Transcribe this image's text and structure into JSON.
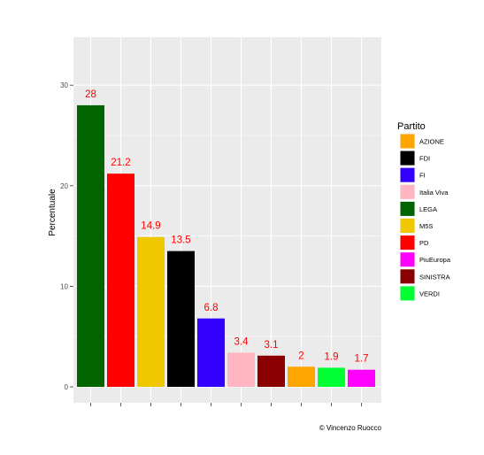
{
  "chart_data": {
    "type": "bar",
    "categories": [
      "LEGA",
      "PD",
      "M5S",
      "FDI",
      "FI",
      "Italia Viva",
      "SINISTRA",
      "AZIONE",
      "VERDI",
      "PiuEuropa"
    ],
    "values": [
      28,
      21.2,
      14.9,
      13.5,
      6.8,
      3.4,
      3.1,
      2,
      1.9,
      1.7
    ],
    "value_labels": [
      "28",
      "21.2",
      "14.9",
      "13.5",
      "6.8",
      "3.4",
      "3.1",
      "2",
      "1.9",
      "1.7"
    ],
    "ylabel": "Percentuale",
    "xlabel": "",
    "ylim": [
      0,
      33.6
    ],
    "yticks": [
      0,
      10,
      20,
      30
    ],
    "grid": true,
    "legend": {
      "title": "Partito",
      "placement": "right",
      "entries": [
        {
          "label": "AZIONE",
          "color": "#ffa500"
        },
        {
          "label": "FDI",
          "color": "#000000"
        },
        {
          "label": "FI",
          "color": "#3300ff"
        },
        {
          "label": "Italia Viva",
          "color": "#ffb6c1"
        },
        {
          "label": "LEGA",
          "color": "#006400"
        },
        {
          "label": "M5S",
          "color": "#f0c800"
        },
        {
          "label": "PD",
          "color": "#ff0000"
        },
        {
          "label": "PiuEuropa",
          "color": "#ff00ff"
        },
        {
          "label": "SINISTRA",
          "color": "#8b0000"
        },
        {
          "label": "VERDI",
          "color": "#00ff33"
        }
      ]
    },
    "bar_colors": [
      "#006400",
      "#ff0000",
      "#f0c800",
      "#000000",
      "#3300ff",
      "#ffb6c1",
      "#8b0000",
      "#ffa500",
      "#00ff33",
      "#ff00ff"
    ],
    "value_label_color": "#ff0000",
    "panel_background": "#ebebeb",
    "caption": "© Vincenzo Ruocco"
  }
}
